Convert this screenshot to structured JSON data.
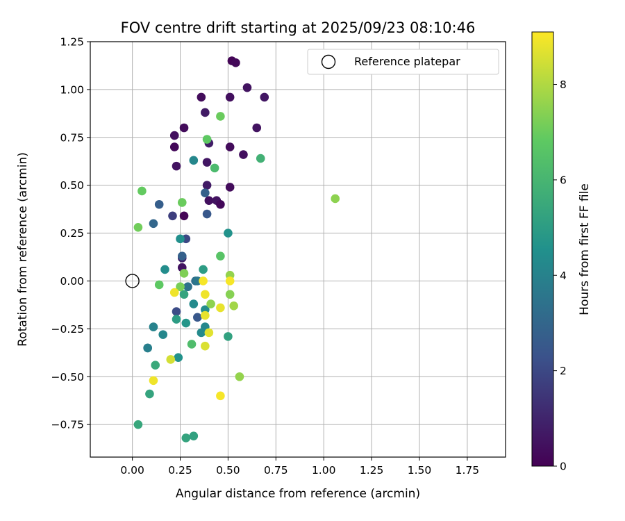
{
  "colors": {
    "colormap": [
      "#440154",
      "#3b528b",
      "#21918c",
      "#5ec962",
      "#fde725"
    ]
  },
  "chart_data": {
    "type": "scatter",
    "title": "FOV centre drift starting at 2025/09/23 08:10:46",
    "xlabel": "Angular distance from reference (arcmin)",
    "ylabel": "Rotation from reference (arcmin)",
    "colorbar_label": "Hours from first FF file",
    "xlim": [
      -0.22,
      1.95
    ],
    "ylim": [
      -0.92,
      1.25
    ],
    "clim": [
      0,
      9.1
    ],
    "grid": true,
    "legend_position": "top-right",
    "x_ticks": [
      "0.00",
      "0.25",
      "0.50",
      "0.75",
      "1.00",
      "1.25",
      "1.50",
      "1.75"
    ],
    "y_ticks": [
      "−0.75",
      "−0.50",
      "−0.25",
      "0.00",
      "0.25",
      "0.50",
      "0.75",
      "1.00",
      "1.25"
    ],
    "colorbar_ticks": [
      "0",
      "2",
      "4",
      "6",
      "8"
    ],
    "reference_point": {
      "label": "Reference platepar",
      "x": 0.0,
      "y": 0.0
    },
    "points": [
      {
        "x": 0.52,
        "y": 1.15,
        "h": 0.1
      },
      {
        "x": 0.54,
        "y": 1.14,
        "h": 0.2
      },
      {
        "x": 0.36,
        "y": 0.96,
        "h": 0.3
      },
      {
        "x": 0.51,
        "y": 0.96,
        "h": 0.4
      },
      {
        "x": 0.6,
        "y": 1.01,
        "h": 0.5
      },
      {
        "x": 0.69,
        "y": 0.96,
        "h": 0.6
      },
      {
        "x": 0.38,
        "y": 0.88,
        "h": 0.7
      },
      {
        "x": 0.27,
        "y": 0.8,
        "h": 0.3
      },
      {
        "x": 0.22,
        "y": 0.76,
        "h": 0.4
      },
      {
        "x": 0.65,
        "y": 0.8,
        "h": 0.5
      },
      {
        "x": 0.4,
        "y": 0.72,
        "h": 0.8
      },
      {
        "x": 0.22,
        "y": 0.7,
        "h": 0.2
      },
      {
        "x": 0.51,
        "y": 0.7,
        "h": 0.3
      },
      {
        "x": 0.58,
        "y": 0.66,
        "h": 0.4
      },
      {
        "x": 0.39,
        "y": 0.62,
        "h": 0.6
      },
      {
        "x": 0.23,
        "y": 0.6,
        "h": 0.5
      },
      {
        "x": 0.39,
        "y": 0.5,
        "h": 0.7
      },
      {
        "x": 0.51,
        "y": 0.49,
        "h": 0.3
      },
      {
        "x": 0.4,
        "y": 0.42,
        "h": 0.4
      },
      {
        "x": 0.44,
        "y": 0.42,
        "h": 0.5
      },
      {
        "x": 0.46,
        "y": 0.4,
        "h": 0.2
      },
      {
        "x": 0.27,
        "y": 0.34,
        "h": 0.1
      },
      {
        "x": 0.26,
        "y": 0.07,
        "h": 0.5
      },
      {
        "x": 0.26,
        "y": 0.12,
        "h": 0.9
      },
      {
        "x": 0.38,
        "y": 0.46,
        "h": 2.8
      },
      {
        "x": 0.39,
        "y": 0.35,
        "h": 2.5
      },
      {
        "x": 0.14,
        "y": 0.4,
        "h": 2.7
      },
      {
        "x": 0.21,
        "y": 0.34,
        "h": 1.7
      },
      {
        "x": 0.11,
        "y": 0.3,
        "h": 3.0
      },
      {
        "x": 0.28,
        "y": 0.22,
        "h": 2.0
      },
      {
        "x": 0.26,
        "y": 0.13,
        "h": 2.8
      },
      {
        "x": 0.23,
        "y": -0.16,
        "h": 2.1
      },
      {
        "x": 0.34,
        "y": -0.19,
        "h": 2.5
      },
      {
        "x": 0.33,
        "y": 0.0,
        "h": 3.3
      },
      {
        "x": 0.34,
        "y": 0.0,
        "h": 3.6
      },
      {
        "x": 0.29,
        "y": -0.03,
        "h": 3.4
      },
      {
        "x": 0.17,
        "y": 0.06,
        "h": 4.4
      },
      {
        "x": 0.25,
        "y": 0.22,
        "h": 4.5
      },
      {
        "x": 0.32,
        "y": 0.63,
        "h": 4.2
      },
      {
        "x": 0.5,
        "y": 0.25,
        "h": 4.6
      },
      {
        "x": 0.37,
        "y": 0.06,
        "h": 5.0
      },
      {
        "x": 0.27,
        "y": -0.07,
        "h": 5.3
      },
      {
        "x": 0.32,
        "y": -0.12,
        "h": 4.3
      },
      {
        "x": 0.38,
        "y": -0.15,
        "h": 4.4
      },
      {
        "x": 0.38,
        "y": -0.24,
        "h": 4.2
      },
      {
        "x": 0.36,
        "y": -0.27,
        "h": 4.3
      },
      {
        "x": 0.28,
        "y": -0.22,
        "h": 4.7
      },
      {
        "x": 0.23,
        "y": -0.2,
        "h": 5.0
      },
      {
        "x": 0.11,
        "y": -0.24,
        "h": 4.0
      },
      {
        "x": 0.16,
        "y": -0.28,
        "h": 4.2
      },
      {
        "x": 0.08,
        "y": -0.35,
        "h": 3.8
      },
      {
        "x": 0.08,
        "y": -0.35,
        "h": 3.9
      },
      {
        "x": 0.24,
        "y": -0.4,
        "h": 4.6
      },
      {
        "x": 0.5,
        "y": -0.29,
        "h": 5.2
      },
      {
        "x": 0.12,
        "y": -0.44,
        "h": 5.5
      },
      {
        "x": 0.09,
        "y": -0.59,
        "h": 5.3
      },
      {
        "x": 0.03,
        "y": -0.75,
        "h": 5.4
      },
      {
        "x": 0.28,
        "y": -0.82,
        "h": 5.3
      },
      {
        "x": 0.32,
        "y": -0.81,
        "h": 5.2
      },
      {
        "x": 0.31,
        "y": -0.33,
        "h": 6.3
      },
      {
        "x": 0.67,
        "y": 0.64,
        "h": 5.8
      },
      {
        "x": 0.43,
        "y": 0.59,
        "h": 6.2
      },
      {
        "x": 0.39,
        "y": 0.74,
        "h": 6.8
      },
      {
        "x": 0.46,
        "y": 0.86,
        "h": 7.0
      },
      {
        "x": 0.05,
        "y": 0.47,
        "h": 6.9
      },
      {
        "x": 0.26,
        "y": 0.41,
        "h": 7.0
      },
      {
        "x": 0.03,
        "y": 0.28,
        "h": 7.1
      },
      {
        "x": 0.46,
        "y": 0.13,
        "h": 6.6
      },
      {
        "x": 0.14,
        "y": -0.02,
        "h": 6.8
      },
      {
        "x": 0.25,
        "y": -0.03,
        "h": 7.2
      },
      {
        "x": 0.27,
        "y": 0.04,
        "h": 7.3
      },
      {
        "x": 0.41,
        "y": -0.12,
        "h": 7.5
      },
      {
        "x": 0.51,
        "y": -0.07,
        "h": 7.4
      },
      {
        "x": 0.51,
        "y": 0.03,
        "h": 7.6
      },
      {
        "x": 0.53,
        "y": -0.13,
        "h": 7.8
      },
      {
        "x": 0.56,
        "y": -0.5,
        "h": 7.6
      },
      {
        "x": 1.06,
        "y": 0.43,
        "h": 7.5
      },
      {
        "x": 0.22,
        "y": -0.06,
        "h": 8.9
      },
      {
        "x": 0.37,
        "y": 0.0,
        "h": 9.0
      },
      {
        "x": 0.38,
        "y": -0.07,
        "h": 8.9
      },
      {
        "x": 0.38,
        "y": -0.18,
        "h": 8.8
      },
      {
        "x": 0.4,
        "y": -0.27,
        "h": 8.7
      },
      {
        "x": 0.46,
        "y": -0.14,
        "h": 8.8
      },
      {
        "x": 0.51,
        "y": 0.0,
        "h": 9.0
      },
      {
        "x": 0.38,
        "y": -0.34,
        "h": 8.6
      },
      {
        "x": 0.2,
        "y": -0.41,
        "h": 8.5
      },
      {
        "x": 0.11,
        "y": -0.52,
        "h": 8.9
      },
      {
        "x": 0.46,
        "y": -0.6,
        "h": 9.0
      }
    ]
  }
}
